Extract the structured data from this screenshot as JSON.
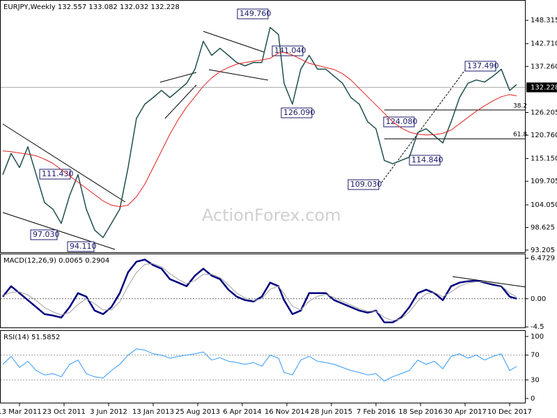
{
  "chart_data": [
    {
      "type": "line",
      "title": "EURJPY,Weekly  132.557 133.082 132.032 132.228",
      "watermark": "ActionForex.com",
      "x": [
        0,
        6,
        12,
        18,
        24,
        30,
        36,
        42,
        48,
        54,
        60,
        66,
        72,
        78,
        84,
        90,
        96,
        102,
        108,
        114,
        120,
        126,
        132,
        138,
        144,
        150,
        156,
        162,
        168,
        174,
        180,
        186,
        192,
        198,
        202,
        208,
        214,
        220,
        226,
        232,
        238,
        244,
        250,
        256,
        262,
        268,
        274,
        280,
        286,
        292,
        298,
        304,
        310,
        316,
        322,
        328,
        334,
        340,
        346,
        352,
        358,
        364,
        369
      ],
      "xlim": [
        0,
        375
      ],
      "series": [
        {
          "color": "#1f4e4e",
          "values": [
            111.3,
            116.4,
            113,
            118,
            111.3,
            104.6,
            103,
            99.6,
            106.3,
            111.3,
            103,
            98,
            96.2,
            99.6,
            103,
            113,
            124.8,
            128.2,
            129.8,
            131.5,
            129.8,
            131.5,
            133.2,
            136.6,
            143.3,
            139.9,
            141.6,
            139.9,
            138.2,
            137.4,
            138.2,
            138.2,
            146.6,
            144.9,
            133.2,
            128.2,
            136.6,
            139.9,
            136.6,
            136.6,
            134.9,
            133.2,
            129.8,
            128.2,
            124,
            122.3,
            114.7,
            113.9,
            114.7,
            115.5,
            121.4,
            122.3,
            120.6,
            118.9,
            124,
            129.8,
            133.2,
            134,
            133.5,
            134.9,
            136.6,
            131.5,
            132.9
          ]
        },
        {
          "color": "#e02020",
          "values": [
            117,
            116.8,
            116.5,
            116.2,
            115.8,
            115,
            114,
            112.5,
            111,
            109.5,
            108,
            106.5,
            105,
            104,
            103.6,
            104,
            106,
            109,
            113,
            117,
            121,
            124.5,
            127.5,
            130,
            132.5,
            134.5,
            136,
            137,
            137.8,
            138.2,
            138.5,
            138.8,
            139.2,
            140.5,
            140.6,
            140,
            139,
            138,
            137.5,
            137,
            136.5,
            135.5,
            134,
            132,
            130,
            128,
            126,
            124,
            122.5,
            121.5,
            121,
            120.8,
            120.9,
            121.2,
            122,
            123.5,
            125,
            126.5,
            127.8,
            129,
            130,
            130.5,
            130.2
          ]
        }
      ],
      "ylim": [
        92.53,
        153.02
      ],
      "yticks": [
        148.315,
        {
          "value": 142.71,
          "label": "142.710"
        },
        {
          "value": 137.26,
          "label": "137.260"
        },
        126.205,
        {
          "value": 120.76,
          "label": "120.760"
        },
        {
          "value": 115.15,
          "label": "115.150"
        },
        109.705,
        {
          "value": 104.05,
          "label": "104.050"
        },
        98.625,
        93.205
      ],
      "last_price": 132.228,
      "levels": [
        {
          "label": "38.2",
          "value": 126.8
        },
        {
          "label": "61.8",
          "value": 119.9
        }
      ],
      "annotations": [
        "149.760",
        "141.040",
        "126.090",
        "137.490",
        "124.080",
        "114.840",
        "109.030",
        "111.430",
        "97.030",
        "94.110"
      ]
    },
    {
      "type": "line",
      "title": "MACD(12,26,9) 0.0065 0.2904",
      "series": [
        {
          "color": "#000080",
          "values": [
            0.33,
            2.0,
            0.89,
            -0.22,
            -1.34,
            -2.46,
            -2.68,
            -3.01,
            -1.34,
            0.89,
            0.33,
            -1.9,
            -2.46,
            -1.34,
            0.89,
            4.24,
            5.92,
            6.25,
            5.36,
            4.8,
            3.13,
            2.57,
            2.0,
            3.68,
            4.8,
            3.68,
            3.13,
            1.45,
            0.33,
            -0.22,
            -0.45,
            0.33,
            2.57,
            2.0,
            -0.22,
            -2.46,
            -1.9,
            0.89,
            0.89,
            0.89,
            -0.22,
            -0.78,
            -1.34,
            -1.9,
            -2.23,
            -1.9,
            -3.79,
            -3.79,
            -3.01,
            -1.34,
            0.89,
            1.45,
            0.89,
            -0.22,
            2.0,
            2.57,
            2.79,
            2.9,
            2.57,
            2.23,
            2.0,
            0.33,
            0.01
          ]
        },
        {
          "color": "#a0a0a0",
          "values": [
            0.5,
            1.0,
            1.1,
            0.6,
            -0.3,
            -1.4,
            -2.1,
            -2.6,
            -2.2,
            -0.9,
            0.0,
            -0.8,
            -1.8,
            -1.8,
            -0.5,
            2.0,
            4.2,
            5.5,
            5.6,
            5.1,
            4.0,
            3.1,
            2.4,
            2.9,
            3.9,
            3.9,
            3.4,
            2.2,
            0.9,
            0.1,
            -0.3,
            0.0,
            1.5,
            2.0,
            0.8,
            -1.2,
            -1.8,
            -0.4,
            0.4,
            0.7,
            0.2,
            -0.4,
            -1.0,
            -1.6,
            -2.0,
            -2.0,
            -3.0,
            -3.5,
            -3.2,
            -2.1,
            -0.4,
            0.8,
            1.0,
            0.3,
            1.1,
            2.0,
            2.5,
            2.7,
            2.7,
            2.4,
            2.1,
            0.9,
            0.29
          ]
        }
      ],
      "ylim": [
        -4.7,
        7.1
      ],
      "yticks": [
        6.4729,
        {
          "value": 0,
          "label": "0.00"
        },
        -4.5
      ]
    },
    {
      "type": "line",
      "title": "RSI(14) 51.5852",
      "series": [
        {
          "color": "#3399ff",
          "values": [
            55,
            68,
            50,
            60,
            45,
            38,
            40,
            35,
            55,
            62,
            40,
            35,
            33,
            45,
            55,
            70,
            80,
            78,
            72,
            70,
            65,
            68,
            70,
            72,
            75,
            62,
            66,
            60,
            58,
            55,
            58,
            52,
            70,
            65,
            42,
            38,
            62,
            68,
            60,
            58,
            55,
            50,
            45,
            42,
            38,
            40,
            28,
            35,
            40,
            45,
            62,
            55,
            60,
            48,
            68,
            72,
            65,
            70,
            62,
            68,
            72,
            45,
            51.59
          ]
        }
      ],
      "ylim": [
        -7.9,
        109
      ],
      "yticks": [
        100,
        70,
        30,
        0
      ],
      "xticks": [
        {
          "value": 12,
          "label": "13 Mar 2011"
        },
        {
          "value": 44,
          "label": "23 Oct 2011"
        },
        {
          "value": 76,
          "label": "3 Jun 2012"
        },
        {
          "value": 108,
          "label": "13 Jan 2013"
        },
        {
          "value": 140,
          "label": "25 Aug 2013"
        },
        {
          "value": 172,
          "label": "6 Apr 2014"
        },
        {
          "value": 204,
          "label": "16 Nov 2014"
        },
        {
          "value": 236,
          "label": "28 Jun 2015"
        },
        {
          "value": 268,
          "label": "7 Feb 2016"
        },
        {
          "value": 300,
          "label": "18 Sep 2016"
        },
        {
          "value": 332,
          "label": "30 Apr 2017"
        },
        {
          "value": 364,
          "label": "10 Dec 2017"
        }
      ]
    }
  ]
}
